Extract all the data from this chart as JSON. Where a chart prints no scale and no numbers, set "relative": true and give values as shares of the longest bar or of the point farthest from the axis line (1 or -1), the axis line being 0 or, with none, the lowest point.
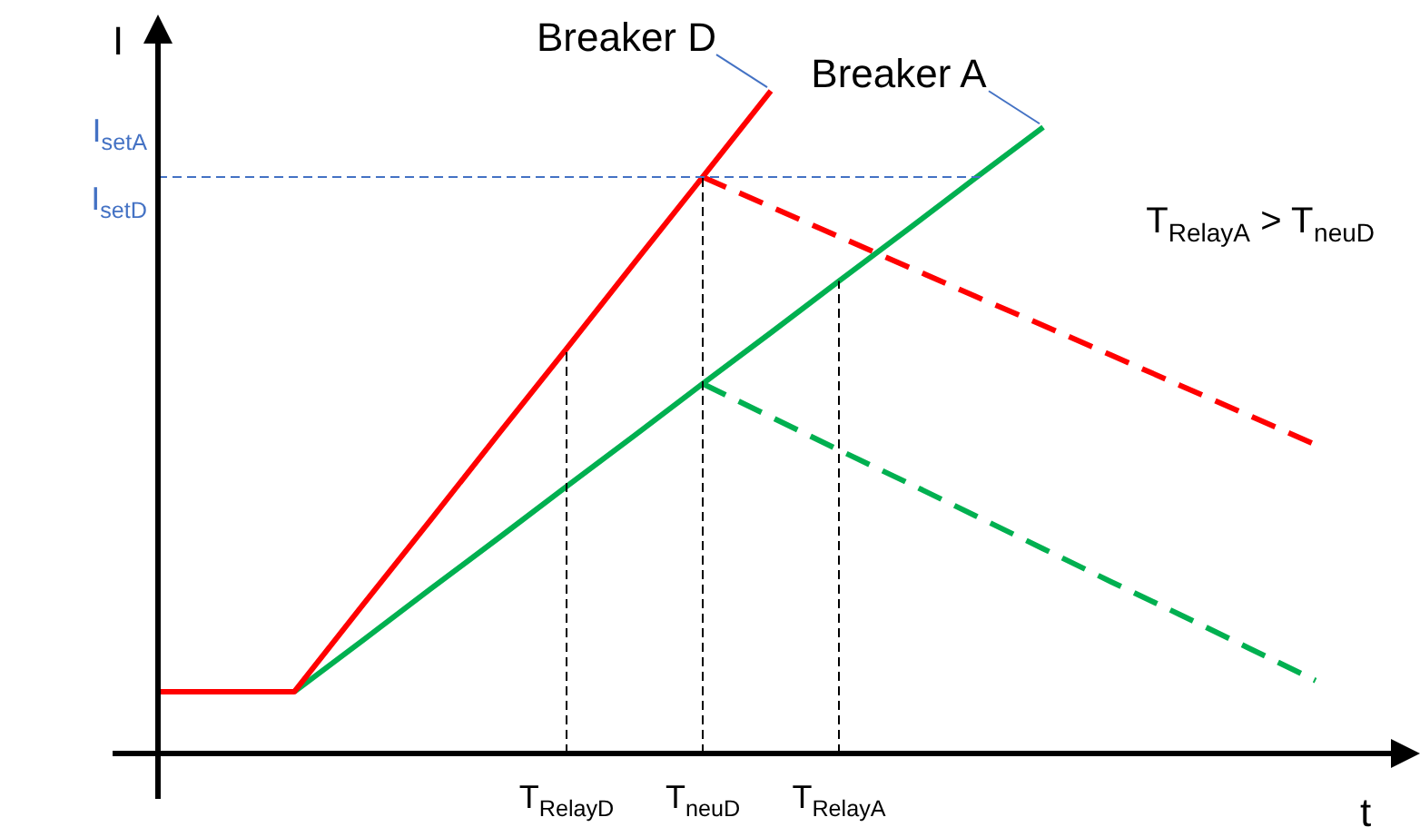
{
  "chart_data": {
    "type": "line",
    "relative": true,
    "xlabel": "t",
    "ylabel": "I",
    "categories": [
      null,
      null,
      null,
      null,
      null,
      null,
      "T$_{RelayD}$",
      null,
      "T$_{neuD}$",
      null,
      "T$_{RelayA}$",
      null,
      null,
      null,
      null,
      null,
      null,
      null,
      null
    ],
    "series": [
      {
        "name": "Breaker D",
        "color": "#ff0000",
        "values": [
          0.093,
          0.093,
          0.093,
          0.223,
          0.352,
          0.482,
          0.611,
          0.741,
          0.87,
          1,
          null,
          null,
          null,
          null,
          null,
          null,
          null,
          null,
          null
        ],
        "line_style": "solid"
      },
      {
        "name": "Breaker A",
        "color": "#00b050",
        "values": [
          null,
          null,
          0.093,
          0.17,
          0.248,
          0.325,
          0.403,
          0.48,
          0.558,
          0.635,
          0.713,
          0.79,
          0.868,
          0.945,
          null,
          null,
          null,
          null,
          null
        ],
        "line_style": "solid"
      },
      {
        "color": "#ff0000",
        "values": [
          null,
          null,
          null,
          null,
          null,
          null,
          null,
          null,
          0.87,
          0.825,
          0.78,
          0.735,
          0.69,
          0.646,
          0.601,
          0.556,
          0.511,
          0.466,
          null
        ],
        "line_style": "dashed"
      },
      {
        "color": "#00b050",
        "values": [
          null,
          null,
          null,
          null,
          null,
          null,
          null,
          null,
          0.558,
          0.508,
          0.458,
          0.409,
          0.359,
          0.309,
          0.259,
          0.21,
          0.16,
          0.11,
          null
        ],
        "line_style": "dashed"
      }
    ],
    "ref_lines": [
      {
        "axis": "y",
        "value": 0.87,
        "label": "I$_{setD}$",
        "color": "#4472c4",
        "line_style": "dashed"
      },
      {
        "axis": "x",
        "value": "T$_{RelayD}$",
        "color": "#000000",
        "line_style": "dashed"
      },
      {
        "axis": "x",
        "value": "T$_{neuD}$",
        "color": "#000000",
        "line_style": "dashed"
      },
      {
        "axis": "x",
        "value": "T$_{RelayA}$",
        "color": "#000000",
        "line_style": "dashed"
      }
    ],
    "annotations": [
      "I$_{setA}$",
      "T$_{RelayA}$ > T$_{neuD}$"
    ],
    "grid": false,
    "legend": false,
    "marker": "none"
  }
}
